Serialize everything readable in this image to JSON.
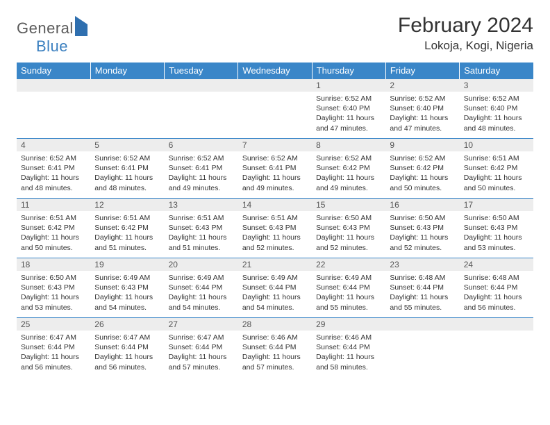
{
  "brand": {
    "part1": "General",
    "part2": "Blue"
  },
  "title": "February 2024",
  "location": "Lokoja, Kogi, Nigeria",
  "colors": {
    "header_bg": "#3a86c8",
    "header_text": "#ffffff",
    "daynum_bg": "#ededed",
    "border": "#3a86c8",
    "text": "#333333"
  },
  "weekdays": [
    "Sunday",
    "Monday",
    "Tuesday",
    "Wednesday",
    "Thursday",
    "Friday",
    "Saturday"
  ],
  "weeks": [
    [
      null,
      null,
      null,
      null,
      {
        "n": "1",
        "sr": "6:52 AM",
        "ss": "6:40 PM",
        "dl": "11 hours and 47 minutes."
      },
      {
        "n": "2",
        "sr": "6:52 AM",
        "ss": "6:40 PM",
        "dl": "11 hours and 47 minutes."
      },
      {
        "n": "3",
        "sr": "6:52 AM",
        "ss": "6:40 PM",
        "dl": "11 hours and 48 minutes."
      }
    ],
    [
      {
        "n": "4",
        "sr": "6:52 AM",
        "ss": "6:41 PM",
        "dl": "11 hours and 48 minutes."
      },
      {
        "n": "5",
        "sr": "6:52 AM",
        "ss": "6:41 PM",
        "dl": "11 hours and 48 minutes."
      },
      {
        "n": "6",
        "sr": "6:52 AM",
        "ss": "6:41 PM",
        "dl": "11 hours and 49 minutes."
      },
      {
        "n": "7",
        "sr": "6:52 AM",
        "ss": "6:41 PM",
        "dl": "11 hours and 49 minutes."
      },
      {
        "n": "8",
        "sr": "6:52 AM",
        "ss": "6:42 PM",
        "dl": "11 hours and 49 minutes."
      },
      {
        "n": "9",
        "sr": "6:52 AM",
        "ss": "6:42 PM",
        "dl": "11 hours and 50 minutes."
      },
      {
        "n": "10",
        "sr": "6:51 AM",
        "ss": "6:42 PM",
        "dl": "11 hours and 50 minutes."
      }
    ],
    [
      {
        "n": "11",
        "sr": "6:51 AM",
        "ss": "6:42 PM",
        "dl": "11 hours and 50 minutes."
      },
      {
        "n": "12",
        "sr": "6:51 AM",
        "ss": "6:42 PM",
        "dl": "11 hours and 51 minutes."
      },
      {
        "n": "13",
        "sr": "6:51 AM",
        "ss": "6:43 PM",
        "dl": "11 hours and 51 minutes."
      },
      {
        "n": "14",
        "sr": "6:51 AM",
        "ss": "6:43 PM",
        "dl": "11 hours and 52 minutes."
      },
      {
        "n": "15",
        "sr": "6:50 AM",
        "ss": "6:43 PM",
        "dl": "11 hours and 52 minutes."
      },
      {
        "n": "16",
        "sr": "6:50 AM",
        "ss": "6:43 PM",
        "dl": "11 hours and 52 minutes."
      },
      {
        "n": "17",
        "sr": "6:50 AM",
        "ss": "6:43 PM",
        "dl": "11 hours and 53 minutes."
      }
    ],
    [
      {
        "n": "18",
        "sr": "6:50 AM",
        "ss": "6:43 PM",
        "dl": "11 hours and 53 minutes."
      },
      {
        "n": "19",
        "sr": "6:49 AM",
        "ss": "6:43 PM",
        "dl": "11 hours and 54 minutes."
      },
      {
        "n": "20",
        "sr": "6:49 AM",
        "ss": "6:44 PM",
        "dl": "11 hours and 54 minutes."
      },
      {
        "n": "21",
        "sr": "6:49 AM",
        "ss": "6:44 PM",
        "dl": "11 hours and 54 minutes."
      },
      {
        "n": "22",
        "sr": "6:49 AM",
        "ss": "6:44 PM",
        "dl": "11 hours and 55 minutes."
      },
      {
        "n": "23",
        "sr": "6:48 AM",
        "ss": "6:44 PM",
        "dl": "11 hours and 55 minutes."
      },
      {
        "n": "24",
        "sr": "6:48 AM",
        "ss": "6:44 PM",
        "dl": "11 hours and 56 minutes."
      }
    ],
    [
      {
        "n": "25",
        "sr": "6:47 AM",
        "ss": "6:44 PM",
        "dl": "11 hours and 56 minutes."
      },
      {
        "n": "26",
        "sr": "6:47 AM",
        "ss": "6:44 PM",
        "dl": "11 hours and 56 minutes."
      },
      {
        "n": "27",
        "sr": "6:47 AM",
        "ss": "6:44 PM",
        "dl": "11 hours and 57 minutes."
      },
      {
        "n": "28",
        "sr": "6:46 AM",
        "ss": "6:44 PM",
        "dl": "11 hours and 57 minutes."
      },
      {
        "n": "29",
        "sr": "6:46 AM",
        "ss": "6:44 PM",
        "dl": "11 hours and 58 minutes."
      },
      null,
      null
    ]
  ],
  "labels": {
    "sunrise": "Sunrise:",
    "sunset": "Sunset:",
    "daylight": "Daylight:"
  }
}
